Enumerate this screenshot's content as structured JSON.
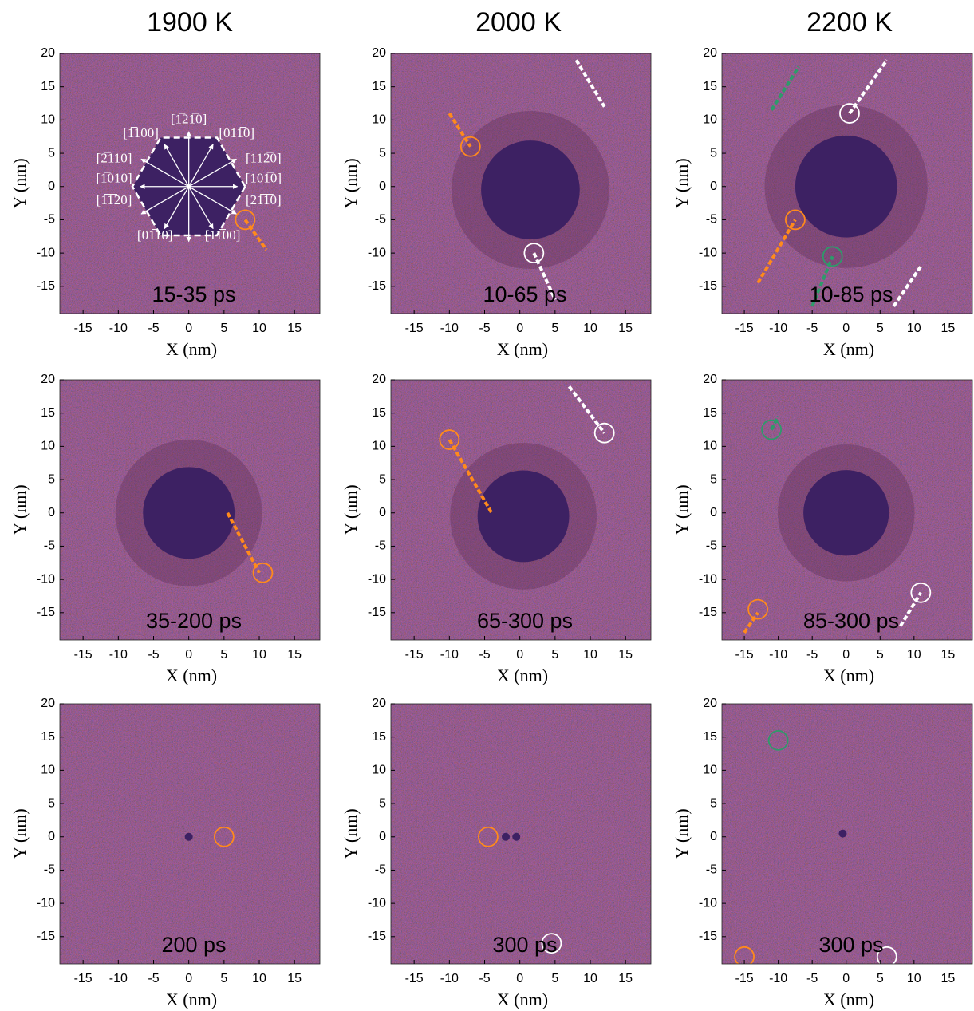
{
  "columns": [
    "1900 K",
    "2000 K",
    "2200 K"
  ],
  "panels": [
    {
      "time": "15-35 ps",
      "xlabel": "X (nm)",
      "ylabel": "Y (nm)",
      "xlim": [
        -18.3,
        18.6
      ],
      "ylim": [
        -19.1,
        20
      ],
      "xticks": [
        -15,
        -10,
        -5,
        0,
        5,
        10,
        15
      ],
      "yticks": [
        -15,
        -10,
        -5,
        0,
        5,
        10,
        15,
        20
      ]
    },
    {
      "time": "10-65 ps",
      "xlabel": "X (nm)",
      "ylabel": "Y (nm)",
      "xlim": [
        -18.3,
        18.6
      ],
      "ylim": [
        -19.1,
        20
      ],
      "xticks": [
        -15,
        -10,
        -5,
        0,
        5,
        10,
        15
      ],
      "yticks": [
        -15,
        -10,
        -5,
        0,
        5,
        10,
        15,
        20
      ]
    },
    {
      "time": "10-85 ps",
      "xlabel": "X (nm)",
      "ylabel": "Y (nm)",
      "xlim": [
        -18.3,
        18.6
      ],
      "ylim": [
        -19.1,
        20
      ],
      "xticks": [
        -15,
        -10,
        -5,
        0,
        5,
        10,
        15
      ],
      "yticks": [
        -15,
        -10,
        -5,
        0,
        5,
        10,
        15,
        20
      ]
    },
    {
      "time": "35-200 ps",
      "xlabel": "X (nm)",
      "ylabel": "Y (nm)",
      "xlim": [
        -18.3,
        18.6
      ],
      "ylim": [
        -19.1,
        20
      ],
      "xticks": [
        -15,
        -10,
        -5,
        0,
        5,
        10,
        15
      ],
      "yticks": [
        -15,
        -10,
        -5,
        0,
        5,
        10,
        15,
        20
      ]
    },
    {
      "time": "65-300 ps",
      "xlabel": "X (nm)",
      "ylabel": "Y (nm)",
      "xlim": [
        -18.3,
        18.6
      ],
      "ylim": [
        -19.1,
        20
      ],
      "xticks": [
        -15,
        -10,
        -5,
        0,
        5,
        10,
        15
      ],
      "yticks": [
        -15,
        -10,
        -5,
        0,
        5,
        10,
        15,
        20
      ]
    },
    {
      "time": "85-300 ps",
      "xlabel": "X (nm)",
      "ylabel": "Y (nm)",
      "xlim": [
        -18.3,
        18.6
      ],
      "ylim": [
        -19.1,
        20
      ],
      "xticks": [
        -15,
        -10,
        -5,
        0,
        5,
        10,
        15
      ],
      "yticks": [
        -15,
        -10,
        -5,
        0,
        5,
        10,
        15,
        20
      ]
    },
    {
      "time": "200 ps",
      "xlabel": "X (nm)",
      "ylabel": "Y (nm)",
      "xlim": [
        -18.3,
        18.6
      ],
      "ylim": [
        -19.1,
        20
      ],
      "xticks": [
        -15,
        -10,
        -5,
        0,
        5,
        10,
        15
      ],
      "yticks": [
        -15,
        -10,
        -5,
        0,
        5,
        10,
        15,
        20
      ]
    },
    {
      "time": "300 ps",
      "xlabel": "X (nm)",
      "ylabel": "Y (nm)",
      "xlim": [
        -18.3,
        18.6
      ],
      "ylim": [
        -19.1,
        20
      ],
      "xticks": [
        -15,
        -10,
        -5,
        0,
        5,
        10,
        15
      ],
      "yticks": [
        -15,
        -10,
        -5,
        0,
        5,
        10,
        15,
        20
      ]
    },
    {
      "time": "300 ps",
      "xlabel": "X (nm)",
      "ylabel": "Y (nm)",
      "xlim": [
        -18.3,
        18.6
      ],
      "ylim": [
        -19.1,
        20
      ],
      "xticks": [
        -15,
        -10,
        -5,
        0,
        5,
        10,
        15
      ],
      "yticks": [
        -15,
        -10,
        -5,
        0,
        5,
        10,
        15,
        20
      ]
    }
  ],
  "directions": [
    "[1̅21̅0]",
    "[1̅100]",
    "[011̅0]",
    "[2̅110]",
    "[1̅010]",
    "[1̅1̅20]",
    "[112̅0]",
    "[101̅0]",
    "[21̅1̅0]",
    "[01̅10]",
    "[11̅00]"
  ]
}
